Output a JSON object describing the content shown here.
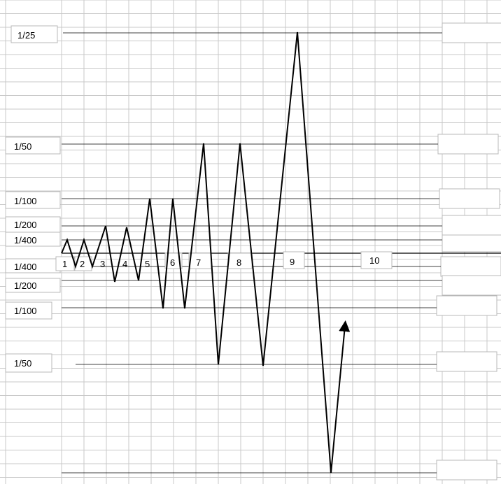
{
  "colors": {
    "grid": "#c8c8c8",
    "thin_rule": "#000000",
    "axis": "#000000",
    "trace": "#000000",
    "label_border": "#b8b8b8"
  },
  "y_labels_left": [
    {
      "text": "1/25"
    },
    {
      "text": "1/50"
    },
    {
      "text": "1/100"
    },
    {
      "text": "1/200"
    },
    {
      "text": "1/400"
    },
    {
      "text": "1/400"
    },
    {
      "text": "1/200"
    },
    {
      "text": "1/100"
    },
    {
      "text": "1/50"
    }
  ],
  "cycle_labels": [
    "1",
    "2",
    "3",
    "4",
    "5",
    "6",
    "7",
    "8",
    "9",
    "10"
  ],
  "trace_direction": "arrow-up",
  "empty_label_boxes_right": 11
}
